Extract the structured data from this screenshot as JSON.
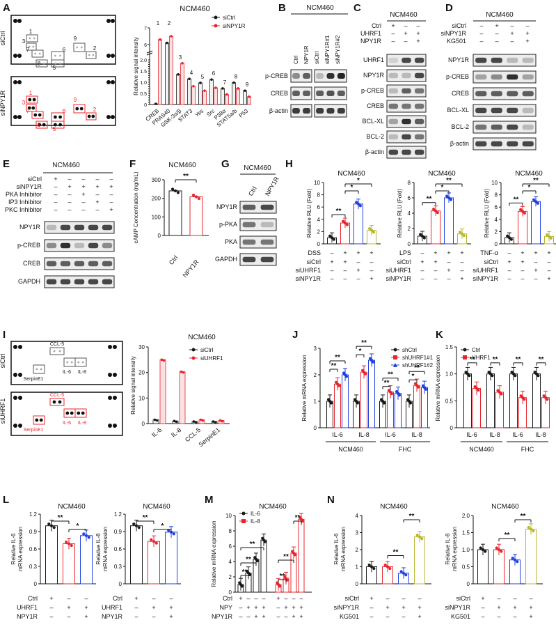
{
  "panels": {
    "A": {
      "letter": "A",
      "cell": "NCM460",
      "arr_top": "siCtrl",
      "arr_bot": "siNPY1R",
      "ylabel": "Relative signal intensity",
      "legend": [
        "siCtrl",
        "siNPY1R"
      ],
      "top_nums": [
        "1",
        "3",
        "7",
        "8",
        "6",
        "5",
        "9",
        "2"
      ],
      "bot_nums": [
        "1",
        "3",
        "7",
        "8",
        "6",
        "5",
        "9",
        "2"
      ]
    },
    "B": {
      "letter": "B",
      "cell": "NCM460",
      "lanes": [
        "Ctrl",
        "NPY1R",
        "siCtrl",
        "siNPY1R#1",
        "siNPY1R#2"
      ],
      "rows": [
        "p-CREB",
        "CREB",
        "β-actin"
      ]
    },
    "C": {
      "letter": "C",
      "cell": "NCM460",
      "cond": [
        "Ctrl",
        "UHRF1",
        "NPY1R"
      ],
      "signs": [
        [
          "+",
          "–",
          "–"
        ],
        [
          "–",
          "+",
          "+"
        ],
        [
          "–",
          "–",
          "+"
        ]
      ],
      "rows": [
        "UHRF1",
        "NPY1R",
        "p-CREB",
        "CREB",
        "BCL-XL",
        "BCL-2",
        "β-actin"
      ]
    },
    "D": {
      "letter": "D",
      "cell": "NCM460",
      "cond": [
        "siCtrl",
        "siNPY1R",
        "KG501"
      ],
      "signs": [
        [
          "–",
          "+",
          "–",
          "–"
        ],
        [
          "–",
          "–",
          "+",
          "+"
        ],
        [
          "–",
          "–",
          "–",
          "+"
        ]
      ],
      "rows": [
        "NPY1R",
        "p-CREB",
        "CREB",
        "BCL-XL",
        "BCL-2",
        "β-actin"
      ]
    },
    "E": {
      "letter": "E",
      "cell": "NCM460",
      "cond": [
        "siCtrl",
        "siNPY1R",
        "PKA Inhibitor",
        "IP3 Inhibitor",
        "PKC Inhibitor"
      ],
      "signs": [
        [
          "+",
          "–",
          "–",
          "–",
          "–"
        ],
        [
          "–",
          "+",
          "+",
          "+",
          "+"
        ],
        [
          "–",
          "–",
          "+",
          "–",
          "–"
        ],
        [
          "–",
          "–",
          "–",
          "+",
          "–"
        ],
        [
          "–",
          "–",
          "–",
          "–",
          "+"
        ]
      ],
      "rows": [
        "NPY1R",
        "p-CREB",
        "CREB",
        "GAPDH"
      ]
    },
    "F": {
      "letter": "F",
      "cell": "NCM460",
      "ylabel": "cAMP Concentration (ng/mL)",
      "sig": "**"
    },
    "G": {
      "letter": "G",
      "cell": "NCM460",
      "lanes": [
        "Ctrl",
        "NPY1R"
      ],
      "rows": [
        "NPY1R",
        "p-PKA",
        "PKA",
        "GAPDH"
      ]
    },
    "H": {
      "letter": "H",
      "cell": "NCM460",
      "ylabel": "Relative RLU (Fold)",
      "stim": [
        "DSS",
        "LPS",
        "TNF-α"
      ],
      "cond": [
        "siCtrl",
        "siUHRF1",
        "siNPY1R"
      ],
      "signs": [
        [
          "+",
          "+",
          "–",
          "–"
        ],
        [
          "–",
          "–",
          "+",
          "–"
        ],
        [
          "–",
          "–",
          "–",
          "+"
        ]
      ],
      "stimsigns": [
        "–",
        "+",
        "+",
        "+"
      ]
    },
    "I": {
      "letter": "I",
      "cell": "NCM460",
      "arr_top": "siCtrl",
      "arr_bot": "siUHRF1",
      "ylabel": "Relative signal intensity",
      "legend": [
        "siCtrl",
        "siUHRF1"
      ],
      "spots": [
        "CCL-5",
        "IL-6",
        "IL-8",
        "SerpinE1"
      ]
    },
    "J": {
      "letter": "J",
      "ylabel": "Relative mRNA expression",
      "legend": [
        "shCtrl",
        "shUHRF1#1",
        "shUHRF1#2"
      ],
      "groups": [
        "NCM460",
        "FHC"
      ]
    },
    "K": {
      "letter": "K",
      "ylabel": "Relative mRNA expression",
      "legend": [
        "Ctrl",
        "UHRF1"
      ],
      "groups": [
        "NCM460",
        "FHC"
      ]
    },
    "L": {
      "letter": "L",
      "cell": "NCM460",
      "ylabels": [
        "Relative IL-6 mRNA expression",
        "Relative IL-8 mRNA expression"
      ],
      "cond": [
        "Ctrl",
        "UHRF1",
        "NPY1R"
      ],
      "signs": [
        [
          "+",
          "–",
          "–"
        ],
        [
          "–",
          "+",
          "+"
        ],
        [
          "–",
          "–",
          "+"
        ]
      ]
    },
    "M": {
      "letter": "M",
      "cell": "NCM460",
      "ylabel": "Relative mRNA expression",
      "legend": [
        "IL-6",
        "IL-8"
      ],
      "cond": [
        "Ctrl",
        "NPY",
        "NPY1R"
      ],
      "signs": [
        [
          "+",
          "–",
          "–",
          "–"
        ],
        [
          "–",
          "+",
          "++",
          "+"
        ],
        [
          "–",
          "–",
          "–",
          "+"
        ]
      ]
    },
    "N": {
      "letter": "N",
      "cell": "NCM460",
      "ylabels": [
        "Relative IL-6 mRNA expression",
        "Relative IL-8 mRNA expression"
      ],
      "cond": [
        "siCtrl",
        "siNPY1R",
        "KG501"
      ],
      "signs": [
        [
          "+",
          "–",
          "–",
          "–"
        ],
        [
          "–",
          "+",
          "+",
          "+"
        ],
        [
          "–",
          "–",
          "–",
          "+"
        ]
      ]
    }
  },
  "colors": {
    "black": "#1a1a1a",
    "red": "#e8252e",
    "blue": "#1f3fe0",
    "olive": "#b8b832",
    "gray": "#888888"
  },
  "chart_data": [
    {
      "id": "A",
      "type": "bar",
      "title": "NCM460",
      "ylabel": "Relative signal intensity",
      "categories": [
        "CREB",
        "PRAS40",
        "GSK-3α/β",
        "STAT3",
        "Yes",
        "Src",
        "P38α",
        "STAT5a/b",
        "P53"
      ],
      "labels": [
        "1",
        "2",
        "3",
        "4",
        "5",
        "6",
        "7",
        "8",
        "9"
      ],
      "series": [
        {
          "name": "siCtrl",
          "values": [
            0.03,
            6.1,
            1.35,
            1.15,
            0.97,
            1.12,
            0.72,
            0.98,
            0.62
          ]
        },
        {
          "name": "siNPY1R",
          "values": [
            6.3,
            6.5,
            1.85,
            0.82,
            0.62,
            0.75,
            0.45,
            0.72,
            0.35
          ]
        }
      ],
      "yticks": [
        "0",
        "0.1",
        "0.2",
        "0.3",
        "0.4",
        "0.5",
        "0.6",
        "0.7",
        "0.8",
        "0.9",
        "1.0",
        "1.1",
        "1.2",
        "1.3",
        "1.4",
        "1.5",
        "1.6",
        "1.7",
        "1.8",
        "1.9",
        "2.0",
        "6",
        "7"
      ]
    },
    {
      "id": "F",
      "type": "bar",
      "title": "NCM460",
      "ylabel": "cAMP Concentration (ng/mL)",
      "categories": [
        "Ctrl",
        "NPY1R"
      ],
      "values": [
        240,
        208
      ],
      "ylim": [
        0,
        300
      ],
      "yticks": [
        "0",
        "100",
        "200",
        "300"
      ]
    },
    {
      "id": "H1",
      "type": "bar",
      "title": "NCM460",
      "categories": [
        "1",
        "2",
        "3",
        "4"
      ],
      "values": [
        1,
        3.4,
        6.5,
        2.2
      ],
      "ylim": [
        0,
        10
      ],
      "yticks": [
        "0",
        "2",
        "4",
        "6",
        "8",
        "10"
      ],
      "stim": "DSS",
      "sig": [
        "**",
        "*",
        "*"
      ]
    },
    {
      "id": "H2",
      "type": "bar",
      "title": "NCM460",
      "categories": [
        "1",
        "2",
        "3",
        "4"
      ],
      "values": [
        1,
        4.3,
        6,
        1.3
      ],
      "ylim": [
        0,
        8
      ],
      "yticks": [
        "0",
        "2",
        "4",
        "6",
        "8"
      ],
      "stim": "LPS",
      "sig": [
        "**",
        "*",
        "**"
      ]
    },
    {
      "id": "H3",
      "type": "bar",
      "title": "NCM460",
      "categories": [
        "1",
        "2",
        "3",
        "4"
      ],
      "values": [
        1,
        5.3,
        6.9,
        1.2
      ],
      "ylim": [
        0,
        10
      ],
      "yticks": [
        "0",
        "2",
        "4",
        "6",
        "8",
        "10"
      ],
      "stim": "TNF-α",
      "sig": [
        "**",
        "*",
        "**"
      ]
    },
    {
      "id": "I",
      "type": "bar",
      "title": "NCM460",
      "ylabel": "Relative signal intensity",
      "categories": [
        "IL-6",
        "IL-8",
        "CCL-5",
        "SerpinE1"
      ],
      "series": [
        {
          "name": "siCtrl",
          "values": [
            1.5,
            1.0,
            0.8,
            0.8
          ]
        },
        {
          "name": "siUHRF1",
          "values": [
            25,
            20.3,
            1.5,
            1.2
          ]
        }
      ],
      "ylim": [
        0,
        30
      ],
      "yticks": [
        "0",
        "10",
        "20",
        "30"
      ]
    },
    {
      "id": "J",
      "type": "bar",
      "ylabel": "Relative mRNA expression",
      "categories": [
        "IL-6",
        "IL-8",
        "IL-6",
        "IL-8"
      ],
      "groups": [
        "NCM460",
        "FHC"
      ],
      "series": [
        {
          "name": "shCtrl",
          "values": [
            1,
            1,
            1,
            1
          ]
        },
        {
          "name": "shUHRF1#1",
          "values": [
            1.65,
            2.1,
            1.35,
            1.6
          ]
        },
        {
          "name": "shUHRF1#2",
          "values": [
            2.0,
            2.55,
            1.3,
            1.52
          ]
        }
      ],
      "ylim": [
        0,
        3
      ],
      "yticks": [
        "0",
        "1",
        "2",
        "3"
      ],
      "sig": [
        "**",
        "**",
        "*",
        "**",
        "**",
        "**",
        "*",
        "**"
      ]
    },
    {
      "id": "K",
      "type": "bar",
      "ylabel": "Relative mRNA expression",
      "categories": [
        "IL-6",
        "IL-8",
        "IL-6",
        "IL-8"
      ],
      "groups": [
        "NCM460",
        "FHC"
      ],
      "series": [
        {
          "name": "Ctrl",
          "values": [
            1,
            1,
            1,
            1
          ]
        },
        {
          "name": "UHRF1",
          "values": [
            0.73,
            0.66,
            0.56,
            0.56
          ]
        }
      ],
      "ylim": [
        0,
        1.5
      ],
      "yticks": [
        "0",
        "0.5",
        "1.0",
        "1.5"
      ],
      "sig": [
        "**",
        "**",
        "**",
        "**"
      ]
    },
    {
      "id": "L1",
      "type": "bar",
      "title": "NCM460",
      "ylabel": "Relative IL-6 mRNA expression",
      "categories": [
        "1",
        "2",
        "3"
      ],
      "values": [
        1.0,
        0.69,
        0.83
      ],
      "ylim": [
        0,
        1.2
      ],
      "yticks": [
        "0",
        "0.3",
        "0.6",
        "0.9",
        "1.2"
      ],
      "sig": [
        "**",
        "*"
      ]
    },
    {
      "id": "L2",
      "type": "bar",
      "title": "NCM460",
      "ylabel": "Relative IL-8 mRNA expression",
      "categories": [
        "1",
        "2",
        "3"
      ],
      "values": [
        1.0,
        0.73,
        0.89
      ],
      "ylim": [
        0,
        1.2
      ],
      "yticks": [
        "0",
        "0.3",
        "0.6",
        "0.9",
        "1.2"
      ],
      "sig": [
        "**",
        "*"
      ]
    },
    {
      "id": "M",
      "type": "bar",
      "title": "NCM460",
      "ylabel": "Relative mRNA expression",
      "categories": [
        "1",
        "2",
        "3",
        "4"
      ],
      "series": [
        {
          "name": "IL-6",
          "values": [
            1,
            2.5,
            4.3,
            6.8
          ]
        },
        {
          "name": "IL-8",
          "values": [
            1,
            1.8,
            5.1,
            9.5
          ]
        }
      ],
      "ylim": [
        0,
        10
      ],
      "yticks": [
        "0",
        "2",
        "4",
        "6",
        "8",
        "10"
      ],
      "sig": [
        "**",
        "**",
        "**",
        "**",
        "**",
        "**",
        "**"
      ]
    },
    {
      "id": "N1",
      "type": "bar",
      "title": "NCM460",
      "ylabel": "Relative IL-6 mRNA expression",
      "categories": [
        "1",
        "2",
        "3",
        "4"
      ],
      "values": [
        1.0,
        1.0,
        0.62,
        2.75
      ],
      "ylim": [
        0,
        4
      ],
      "yticks": [
        "0",
        "1",
        "2",
        "3",
        "4"
      ],
      "sig": [
        "**",
        "**"
      ]
    },
    {
      "id": "N2",
      "type": "bar",
      "title": "NCM460",
      "ylabel": "Relative IL-8 mRNA expression",
      "categories": [
        "1",
        "2",
        "3",
        "4"
      ],
      "values": [
        1.0,
        1.0,
        0.7,
        1.6
      ],
      "ylim": [
        0,
        2
      ],
      "yticks": [
        "0",
        "0.5",
        "1.0",
        "1.5",
        "2.0"
      ],
      "sig": [
        "**",
        "**"
      ]
    }
  ]
}
